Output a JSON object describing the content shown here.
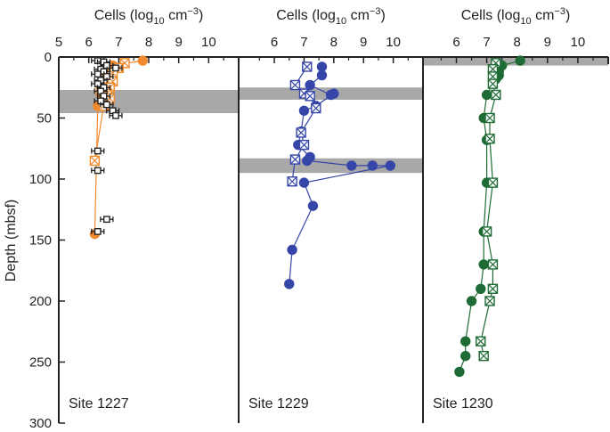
{
  "figure": {
    "y_axis_label": "Depth (mbsf)",
    "y_ticks": [
      0,
      50,
      100,
      150,
      200,
      250,
      300
    ],
    "y_range": [
      0,
      300
    ]
  },
  "chart_data": [
    {
      "type": "scatter",
      "site_label": "Site 1227",
      "x_title": {
        "prefix": "Cells (log",
        "sub": "10",
        "mid": " cm",
        "sup": "−3",
        "suffix": ")"
      },
      "x_ticks": [
        5,
        6,
        7,
        8,
        9,
        10
      ],
      "xlim": [
        5,
        11.0
      ],
      "ylim": [
        0,
        300
      ],
      "shaded_depths": [
        [
          27,
          46
        ]
      ],
      "series": [
        {
          "name": "orange filled circles",
          "marker": "circle",
          "color": "#f08a2c",
          "connected": true,
          "points": [
            [
              7.8,
              3
            ],
            [
              6.8,
              7
            ],
            [
              6.6,
              15
            ],
            [
              6.4,
              25
            ],
            [
              6.4,
              30
            ],
            [
              6.3,
              40
            ],
            [
              6.2,
              145
            ]
          ]
        },
        {
          "name": "orange crossed squares",
          "marker": "xsquare",
          "color": "#f08a2c",
          "connected": true,
          "points": [
            [
              7.2,
              5
            ],
            [
              7.0,
              9
            ],
            [
              6.8,
              13
            ],
            [
              6.8,
              20
            ],
            [
              6.7,
              25
            ],
            [
              6.6,
              30
            ],
            [
              6.7,
              34
            ],
            [
              6.5,
              40
            ],
            [
              6.2,
              85
            ]
          ]
        },
        {
          "name": "black open squares with error bars",
          "marker": "osquare",
          "color": "#222222",
          "connected": false,
          "points": [
            [
              6.3,
              3
            ],
            [
              6.5,
              4
            ],
            [
              6.6,
              7
            ],
            [
              6.9,
              9
            ],
            [
              6.4,
              10
            ],
            [
              6.5,
              12
            ],
            [
              6.3,
              14
            ],
            [
              6.6,
              16
            ],
            [
              6.4,
              19
            ],
            [
              6.3,
              22
            ],
            [
              6.5,
              25
            ],
            [
              6.4,
              28
            ],
            [
              6.5,
              32
            ],
            [
              6.4,
              36
            ],
            [
              6.6,
              39
            ],
            [
              6.8,
              44
            ],
            [
              6.9,
              48
            ],
            [
              6.3,
              77
            ],
            [
              6.3,
              93
            ],
            [
              6.6,
              133
            ],
            [
              6.3,
              143
            ]
          ]
        }
      ]
    },
    {
      "type": "scatter",
      "site_label": "Site 1229",
      "x_title": {
        "prefix": "Cells (log",
        "sub": "10",
        "mid": " cm",
        "sup": "−3",
        "suffix": ")"
      },
      "x_ticks": [
        6,
        7,
        8,
        9,
        10
      ],
      "xlim": [
        4.8,
        11.0
      ],
      "ylim": [
        0,
        300
      ],
      "shaded_depths": [
        [
          25,
          35
        ],
        [
          83,
          95
        ]
      ],
      "series": [
        {
          "name": "blue filled circles",
          "marker": "circle",
          "color": "#3646a8",
          "connected": true,
          "points": [
            [
              7.6,
              8
            ],
            [
              7.6,
              15
            ],
            [
              7.2,
              23
            ],
            [
              7.9,
              31
            ],
            [
              8.0,
              30
            ],
            [
              7.4,
              40
            ],
            [
              7.0,
              44
            ],
            [
              6.9,
              61
            ],
            [
              6.8,
              72
            ],
            [
              7.2,
              82
            ],
            [
              7.1,
              85
            ],
            [
              8.6,
              89
            ],
            [
              9.3,
              89
            ],
            [
              9.9,
              89
            ],
            [
              7.0,
              103
            ],
            [
              7.3,
              122
            ],
            [
              6.6,
              158
            ],
            [
              6.5,
              186
            ]
          ]
        },
        {
          "name": "blue crossed squares",
          "marker": "xsquare",
          "color": "#3646a8",
          "connected": true,
          "points": [
            [
              7.1,
              8
            ],
            [
              6.7,
              23
            ],
            [
              7.0,
              30
            ],
            [
              7.2,
              32
            ],
            [
              7.4,
              42
            ],
            [
              6.9,
              62
            ],
            [
              7.0,
              72
            ],
            [
              6.7,
              84
            ],
            [
              6.6,
              102
            ]
          ]
        }
      ]
    },
    {
      "type": "scatter",
      "site_label": "Site 1230",
      "x_title": {
        "prefix": "Cells (log",
        "sub": "10",
        "mid": " cm",
        "sup": "−3",
        "suffix": ")"
      },
      "x_ticks": [
        6,
        7,
        8,
        9,
        10
      ],
      "xlim": [
        4.9,
        11.0
      ],
      "ylim": [
        0,
        300
      ],
      "shaded_depths": [
        [
          0,
          7
        ]
      ],
      "series": [
        {
          "name": "green filled circles",
          "marker": "circle",
          "color": "#1e6b35",
          "connected": true,
          "points": [
            [
              8.1,
              3
            ],
            [
              7.5,
              7
            ],
            [
              7.4,
              12
            ],
            [
              7.4,
              15
            ],
            [
              7.3,
              18
            ],
            [
              7.0,
              31
            ],
            [
              6.9,
              50
            ],
            [
              7.0,
              68
            ],
            [
              7.0,
              103
            ],
            [
              6.9,
              143
            ],
            [
              6.9,
              170
            ],
            [
              6.8,
              190
            ],
            [
              6.5,
              200
            ],
            [
              6.3,
              233
            ],
            [
              6.3,
              245
            ],
            [
              6.1,
              258
            ]
          ]
        },
        {
          "name": "green crossed squares",
          "marker": "xsquare",
          "color": "#1e6b35",
          "connected": true,
          "points": [
            [
              7.3,
              5
            ],
            [
              7.2,
              10
            ],
            [
              7.2,
              16
            ],
            [
              7.2,
              22
            ],
            [
              7.3,
              31
            ],
            [
              7.1,
              50
            ],
            [
              7.1,
              67
            ],
            [
              7.2,
              103
            ],
            [
              7.0,
              143
            ],
            [
              7.2,
              170
            ],
            [
              7.2,
              190
            ],
            [
              7.1,
              200
            ],
            [
              6.8,
              233
            ],
            [
              6.9,
              245
            ]
          ]
        }
      ]
    }
  ]
}
